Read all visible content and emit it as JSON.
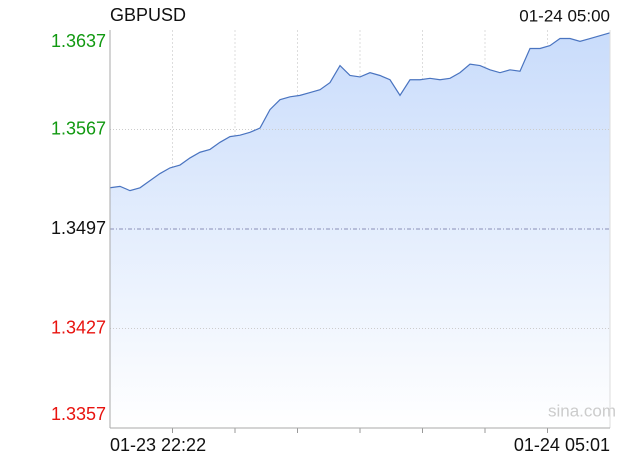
{
  "chart_data": {
    "type": "line",
    "title": "GBPUSD",
    "timestamp": "01-24 05:00",
    "watermark": "sina.com",
    "categories": [
      "01-23 22:22",
      null,
      null,
      null,
      null,
      null,
      null,
      null,
      null,
      null,
      null,
      null,
      null,
      null,
      null,
      null,
      null,
      null,
      null,
      null,
      null,
      null,
      null,
      null,
      null,
      null,
      null,
      null,
      null,
      null,
      null,
      null,
      null,
      null,
      null,
      null,
      null,
      null,
      null,
      null,
      null,
      null,
      null,
      null,
      null,
      null,
      null,
      null,
      null,
      null,
      "01-24 05:01"
    ],
    "values": [
      1.3526,
      1.3527,
      1.3524,
      1.3526,
      1.3531,
      1.3536,
      1.354,
      1.3542,
      1.3547,
      1.3551,
      1.3553,
      1.3558,
      1.3562,
      1.3563,
      1.3565,
      1.3568,
      1.3581,
      1.3588,
      1.359,
      1.3591,
      1.3593,
      1.3595,
      1.36,
      1.3612,
      1.3605,
      1.3604,
      1.3607,
      1.3605,
      1.3602,
      1.3591,
      1.3602,
      1.3602,
      1.3603,
      1.3602,
      1.3603,
      1.3607,
      1.3613,
      1.3612,
      1.3609,
      1.3607,
      1.3609,
      1.3608,
      1.3624,
      1.3624,
      1.3626,
      1.3631,
      1.3631,
      1.3629,
      1.3631,
      1.3633,
      1.3635
    ],
    "color": "#4a74c0",
    "ylim": [
      1.3357,
      1.3637
    ],
    "yticks": [
      1.3357,
      1.3427,
      1.3497,
      1.3567,
      1.3637
    ],
    "reference_line": 1.3497,
    "up_color": "#119911",
    "down_color": "#e8130f",
    "grid": true
  }
}
